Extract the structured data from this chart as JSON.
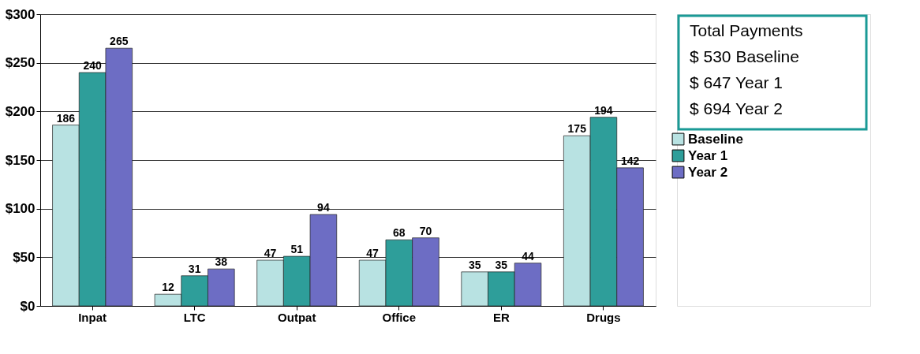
{
  "chart_data": {
    "type": "bar",
    "categories": [
      "Inpat",
      "LTC",
      "Outpat",
      "Office",
      "ER",
      "Drugs"
    ],
    "series": [
      {
        "name": "Baseline",
        "color": "#b8e2e2",
        "values": [
          186,
          12,
          47,
          47,
          35,
          175
        ]
      },
      {
        "name": "Year 1",
        "color": "#2e9e9a",
        "values": [
          240,
          31,
          51,
          68,
          35,
          194
        ]
      },
      {
        "name": "Year 2",
        "color": "#6d6dc4",
        "values": [
          265,
          38,
          94,
          70,
          44,
          142
        ]
      }
    ],
    "ylim": [
      0,
      300
    ],
    "yticks": [
      {
        "value": 0,
        "label": "$0"
      },
      {
        "value": 50,
        "label": "$50"
      },
      {
        "value": 100,
        "label": "$100"
      },
      {
        "value": 150,
        "label": "$150"
      },
      {
        "value": 200,
        "label": "$200"
      },
      {
        "value": 250,
        "label": "$250"
      },
      {
        "value": 300,
        "label": "$300"
      }
    ],
    "grid": "y",
    "legend": "right",
    "data_labels": true,
    "annotations": [
      "Total Payments",
      "$  530 Baseline",
      "$  647 Year 1",
      "$  694 Year 2"
    ]
  }
}
